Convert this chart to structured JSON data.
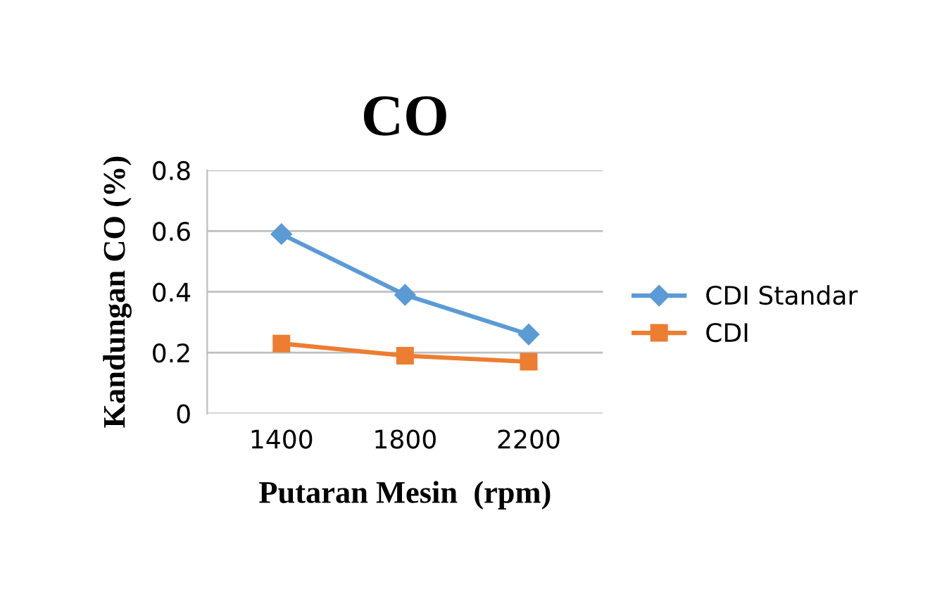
{
  "chart_data": {
    "type": "line",
    "title": "CO",
    "xlabel": "Putaran Mesin  (rpm)",
    "ylabel": "Kandungan CO (%)",
    "categories": [
      "1400",
      "1800",
      "2200"
    ],
    "series": [
      {
        "name": "CDI Standar",
        "color": "#5b9bd5",
        "marker": "diamond",
        "values": [
          0.59,
          0.39,
          0.26
        ]
      },
      {
        "name": "CDI",
        "color": "#ed7d31",
        "marker": "square",
        "values": [
          0.23,
          0.19,
          0.17
        ]
      }
    ],
    "ylim": [
      0,
      0.8
    ],
    "yticks": [
      0,
      0.2,
      0.4,
      0.6,
      0.8
    ],
    "grid": "y",
    "legend": "right",
    "line_style": "solid"
  }
}
